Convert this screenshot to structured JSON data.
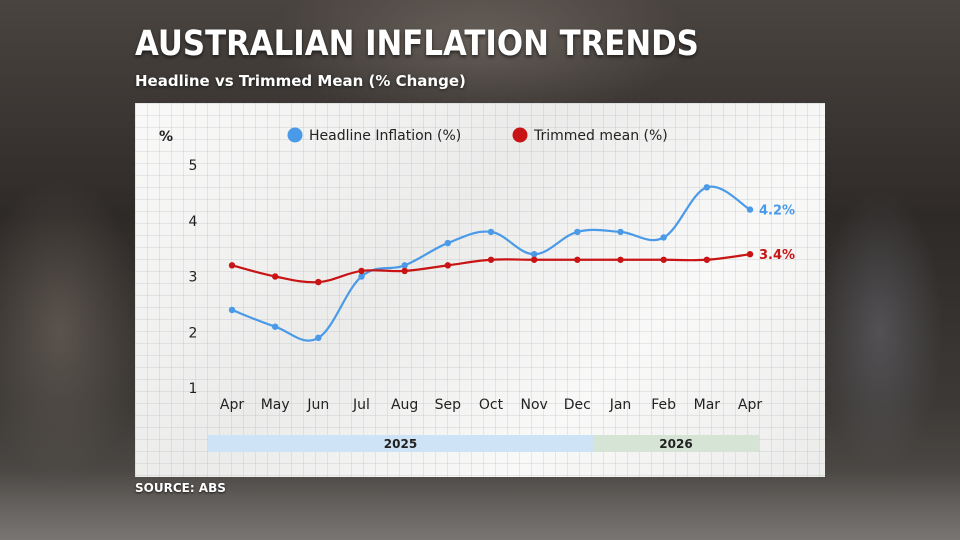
{
  "header": {
    "title": "AUSTRALIAN INFLATION TRENDS",
    "subtitle": "Headline vs Trimmed Mean (% Change)"
  },
  "footer": {
    "source": "SOURCE: ABS"
  },
  "chart_data": {
    "type": "line",
    "y_unit_label": "%",
    "ylim": [
      1,
      5
    ],
    "yticks": [
      "1",
      "2",
      "3",
      "4",
      "5"
    ],
    "categories": [
      "Apr",
      "May",
      "Jun",
      "Jul",
      "Aug",
      "Sep",
      "Oct",
      "Nov",
      "Dec",
      "Jan",
      "Feb",
      "Mar",
      "Apr"
    ],
    "years": [
      {
        "label": "2025",
        "color": "#cfe3f7"
      },
      {
        "label": "2026",
        "color": "#d6e4d5"
      }
    ],
    "series": [
      {
        "name": "Headline Inflation (%)",
        "color": "#4a9ae8",
        "values": [
          2.4,
          2.1,
          1.9,
          3.0,
          3.2,
          3.6,
          3.8,
          3.4,
          3.8,
          3.8,
          3.7,
          4.6,
          4.2
        ],
        "end_label": "4.2%"
      },
      {
        "name": "Trimmed mean (%)",
        "color": "#c81414",
        "values": [
          3.2,
          3.0,
          2.9,
          3.1,
          3.1,
          3.2,
          3.3,
          3.3,
          3.3,
          3.3,
          3.3,
          3.3,
          3.4
        ],
        "end_label": "3.4%"
      }
    ],
    "grid": true,
    "legend_position": "top"
  }
}
